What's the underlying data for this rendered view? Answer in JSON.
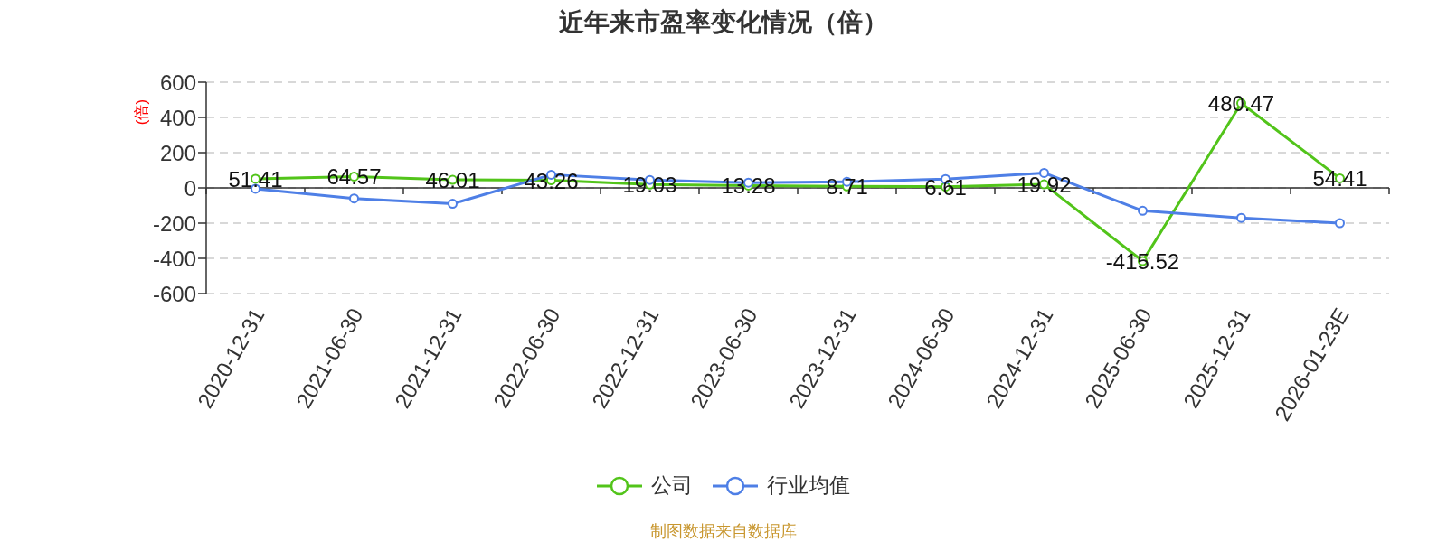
{
  "chart_data": {
    "type": "line",
    "title": "近年来市盈率变化情况（倍）",
    "ylabel": "(倍)",
    "categories": [
      "2020-12-31",
      "2021-06-30",
      "2021-12-31",
      "2022-06-30",
      "2022-12-31",
      "2023-06-30",
      "2023-12-31",
      "2024-06-30",
      "2024-12-31",
      "2025-06-30",
      "2025-12-31",
      "2026-01-23E"
    ],
    "series": [
      {
        "name": "公司",
        "color": "#52c41a",
        "values": [
          51.41,
          64.57,
          46.01,
          43.26,
          19.03,
          13.28,
          8.71,
          6.61,
          19.92,
          -415.52,
          480.47,
          54.41
        ],
        "value_labels": [
          "51.41",
          "64.57",
          "46.01",
          "43.26",
          "19.03",
          "13.28",
          "8.71",
          "6.61",
          "19.92",
          "-415.52",
          "480.47",
          "54.41"
        ]
      },
      {
        "name": "行业均值",
        "color": "#4e7fe6",
        "values": [
          -5,
          -60,
          -90,
          75,
          45,
          30,
          35,
          50,
          85,
          -130,
          -170,
          -200
        ]
      }
    ],
    "ylim": [
      -600,
      600
    ],
    "yticks": [
      -600,
      -400,
      -200,
      0,
      200,
      400,
      600
    ],
    "grid": "y",
    "legend": "bottom",
    "marker": "circle",
    "annotations": [
      "制图数据来自数据库"
    ]
  }
}
